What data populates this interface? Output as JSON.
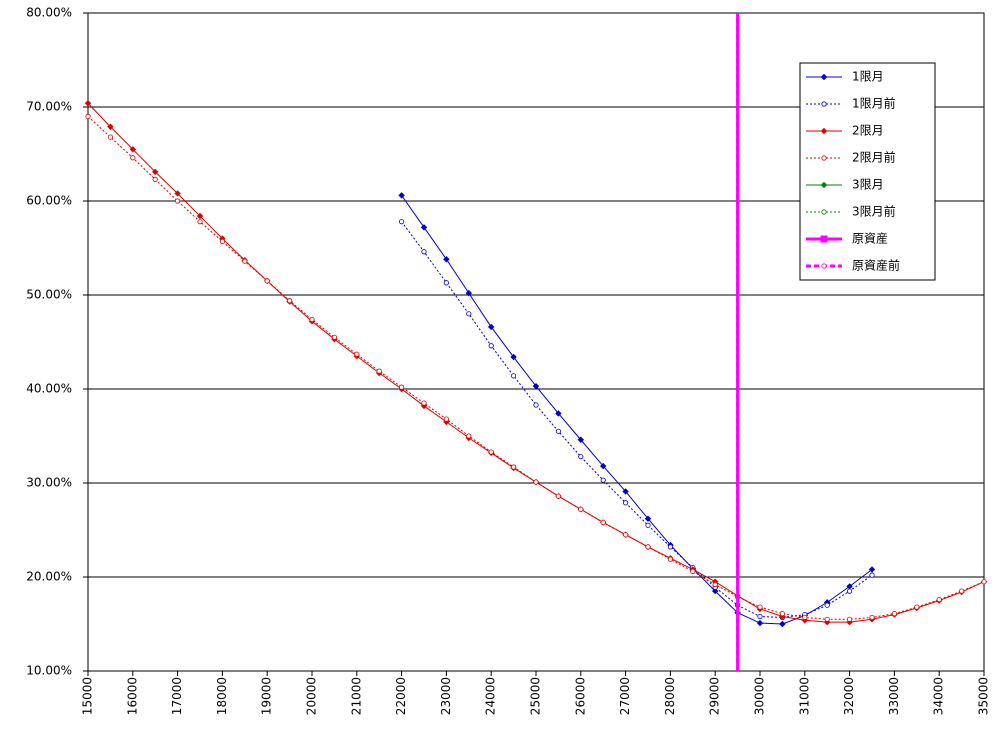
{
  "chart_data": {
    "type": "line",
    "xlim": [
      15000,
      35000
    ],
    "xticks": [
      15000,
      16000,
      17000,
      18000,
      19000,
      20000,
      21000,
      22000,
      23000,
      24000,
      25000,
      26000,
      27000,
      28000,
      29000,
      30000,
      31000,
      32000,
      33000,
      34000,
      35000
    ],
    "ylim": [
      10,
      80
    ],
    "yticks": [
      {
        "value": 10,
        "label": "10.00%"
      },
      {
        "value": 20,
        "label": "20.00%"
      },
      {
        "value": 30,
        "label": "30.00%"
      },
      {
        "value": 40,
        "label": "40.00%"
      },
      {
        "value": 50,
        "label": "50.00%"
      },
      {
        "value": 60,
        "label": "60.00%"
      },
      {
        "value": 70,
        "label": "70.00%"
      },
      {
        "value": 80,
        "label": "80.00%"
      }
    ],
    "grid": true,
    "legend": "upper-right",
    "series": [
      {
        "name": "1限月",
        "color": "#0000cc",
        "line_style": "solid",
        "marker": "diamond",
        "x": [
          22000,
          22500,
          23000,
          23500,
          24000,
          24500,
          25000,
          25500,
          26000,
          26500,
          27000,
          27500,
          28000,
          28500,
          29000,
          29500,
          30000,
          30500,
          31000,
          31500,
          32000,
          32500
        ],
        "values": [
          60.6,
          57.2,
          53.8,
          50.2,
          46.6,
          43.4,
          40.3,
          37.4,
          34.6,
          31.8,
          29.1,
          26.2,
          23.4,
          20.9,
          18.5,
          16.2,
          15.1,
          15.0,
          15.9,
          17.3,
          19.0,
          20.8
        ]
      },
      {
        "name": "1限月前",
        "color": "#0000cc",
        "line_style": "dotted",
        "marker": "circle",
        "x": [
          22000,
          22500,
          23000,
          23500,
          24000,
          24500,
          25000,
          25500,
          26000,
          26500,
          27000,
          27500,
          28000,
          28500,
          29000,
          29500,
          30000,
          30500,
          31000,
          31500,
          32000,
          32500
        ],
        "values": [
          57.8,
          54.6,
          51.3,
          48.0,
          44.6,
          41.4,
          38.3,
          35.5,
          32.8,
          30.3,
          27.9,
          25.5,
          23.2,
          21.0,
          18.9,
          17.0,
          15.8,
          15.7,
          16.0,
          17.0,
          18.5,
          20.2
        ]
      },
      {
        "name": "2限月",
        "color": "#e00000",
        "line_style": "solid",
        "marker": "diamond",
        "x": [
          15000,
          15500,
          16000,
          16500,
          17000,
          17500,
          18000,
          18500,
          19000,
          19500,
          20000,
          20500,
          21000,
          21500,
          22000,
          22500,
          23000,
          23500,
          24000,
          24500,
          25000,
          25500,
          26000,
          26500,
          27000,
          27500,
          28000,
          28500,
          29000,
          29500,
          30000,
          30500,
          31000,
          31500,
          32000,
          32500,
          33000,
          33500,
          34000,
          34500,
          35000
        ],
        "values": [
          70.4,
          67.9,
          65.5,
          63.1,
          60.8,
          58.4,
          56.0,
          53.7,
          51.5,
          49.3,
          47.2,
          45.3,
          43.5,
          41.7,
          40.0,
          38.2,
          36.5,
          34.8,
          33.2,
          31.6,
          30.1,
          28.6,
          27.2,
          25.8,
          24.5,
          23.2,
          22.0,
          20.8,
          19.5,
          18.0,
          16.6,
          15.8,
          15.4,
          15.2,
          15.2,
          15.5,
          16.0,
          16.7,
          17.5,
          18.4,
          19.5
        ]
      },
      {
        "name": "2限月前",
        "color": "#e00000",
        "line_style": "dotted",
        "marker": "circle",
        "x": [
          15000,
          15500,
          16000,
          16500,
          17000,
          17500,
          18000,
          18500,
          19000,
          19500,
          20000,
          20500,
          21000,
          21500,
          22000,
          22500,
          23000,
          23500,
          24000,
          24500,
          25000,
          25500,
          26000,
          26500,
          27000,
          27500,
          28000,
          28500,
          29000,
          29500,
          30000,
          30500,
          31000,
          31500,
          32000,
          32500,
          33000,
          33500,
          34000,
          34500,
          35000
        ],
        "values": [
          69.0,
          66.8,
          64.6,
          62.3,
          60.0,
          57.8,
          55.7,
          53.6,
          51.5,
          49.4,
          47.4,
          45.5,
          43.7,
          41.9,
          40.2,
          38.5,
          36.8,
          35.0,
          33.3,
          31.7,
          30.1,
          28.6,
          27.2,
          25.8,
          24.5,
          23.2,
          21.9,
          20.6,
          19.2,
          17.9,
          16.8,
          16.1,
          15.7,
          15.5,
          15.5,
          15.7,
          16.1,
          16.8,
          17.6,
          18.5,
          19.5
        ]
      },
      {
        "name": "3限月",
        "color": "#008000",
        "line_style": "solid",
        "marker": "diamond",
        "x": [],
        "values": []
      },
      {
        "name": "3限月前",
        "color": "#008000",
        "line_style": "dotted",
        "marker": "circle",
        "x": [],
        "values": []
      },
      {
        "name": "原資産",
        "color": "#ff00ff",
        "line_style": "solid",
        "marker": "square",
        "x": [
          29500,
          29500
        ],
        "values": [
          10,
          80
        ]
      },
      {
        "name": "原資産前",
        "color": "#ff00ff",
        "line_style": "dashed",
        "marker": "circle",
        "x": [
          29500,
          29500
        ],
        "values": [
          10,
          80
        ]
      }
    ]
  }
}
